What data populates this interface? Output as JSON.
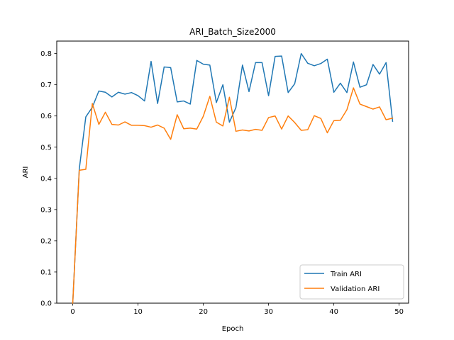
{
  "chart_data": {
    "type": "line",
    "title": "ARI_Batch_Size2000",
    "xlabel": "Epoch",
    "ylabel": "ARI",
    "xlim": [
      -2.45,
      51.45
    ],
    "ylim": [
      0.0,
      0.84
    ],
    "xticks": [
      0,
      10,
      20,
      30,
      40,
      50
    ],
    "yticks": [
      0.0,
      0.1,
      0.2,
      0.3,
      0.4,
      0.5,
      0.6,
      0.7,
      0.8
    ],
    "grid": false,
    "legend_position": "lower-right",
    "x": [
      0,
      1,
      2,
      3,
      4,
      5,
      6,
      7,
      8,
      9,
      10,
      11,
      12,
      13,
      14,
      15,
      16,
      17,
      18,
      19,
      20,
      21,
      22,
      23,
      24,
      25,
      26,
      27,
      28,
      29,
      30,
      31,
      32,
      33,
      34,
      35,
      36,
      37,
      38,
      39,
      40,
      41,
      42,
      43,
      44,
      45,
      46,
      47,
      48,
      49
    ],
    "series": [
      {
        "name": "Train ARI",
        "color": "#1f77b4",
        "values": [
          0.0,
          0.43,
          0.597,
          0.628,
          0.68,
          0.676,
          0.661,
          0.676,
          0.67,
          0.675,
          0.665,
          0.648,
          0.775,
          0.64,
          0.757,
          0.755,
          0.645,
          0.648,
          0.638,
          0.778,
          0.766,
          0.763,
          0.643,
          0.7,
          0.58,
          0.627,
          0.763,
          0.678,
          0.771,
          0.771,
          0.665,
          0.791,
          0.792,
          0.675,
          0.703,
          0.8,
          0.769,
          0.761,
          0.768,
          0.782,
          0.676,
          0.705,
          0.675,
          0.773,
          0.692,
          0.7,
          0.765,
          0.734,
          0.771,
          0.583
        ]
      },
      {
        "name": "Validation ARI",
        "color": "#ff7f0e",
        "values": [
          0.0,
          0.426,
          0.429,
          0.64,
          0.573,
          0.612,
          0.573,
          0.571,
          0.581,
          0.57,
          0.57,
          0.569,
          0.564,
          0.571,
          0.561,
          0.525,
          0.604,
          0.559,
          0.561,
          0.558,
          0.599,
          0.663,
          0.58,
          0.568,
          0.66,
          0.551,
          0.555,
          0.552,
          0.557,
          0.554,
          0.595,
          0.6,
          0.558,
          0.6,
          0.579,
          0.554,
          0.556,
          0.601,
          0.592,
          0.546,
          0.585,
          0.586,
          0.62,
          0.69,
          0.638,
          0.63,
          0.622,
          0.629,
          0.588,
          0.593
        ]
      }
    ]
  }
}
